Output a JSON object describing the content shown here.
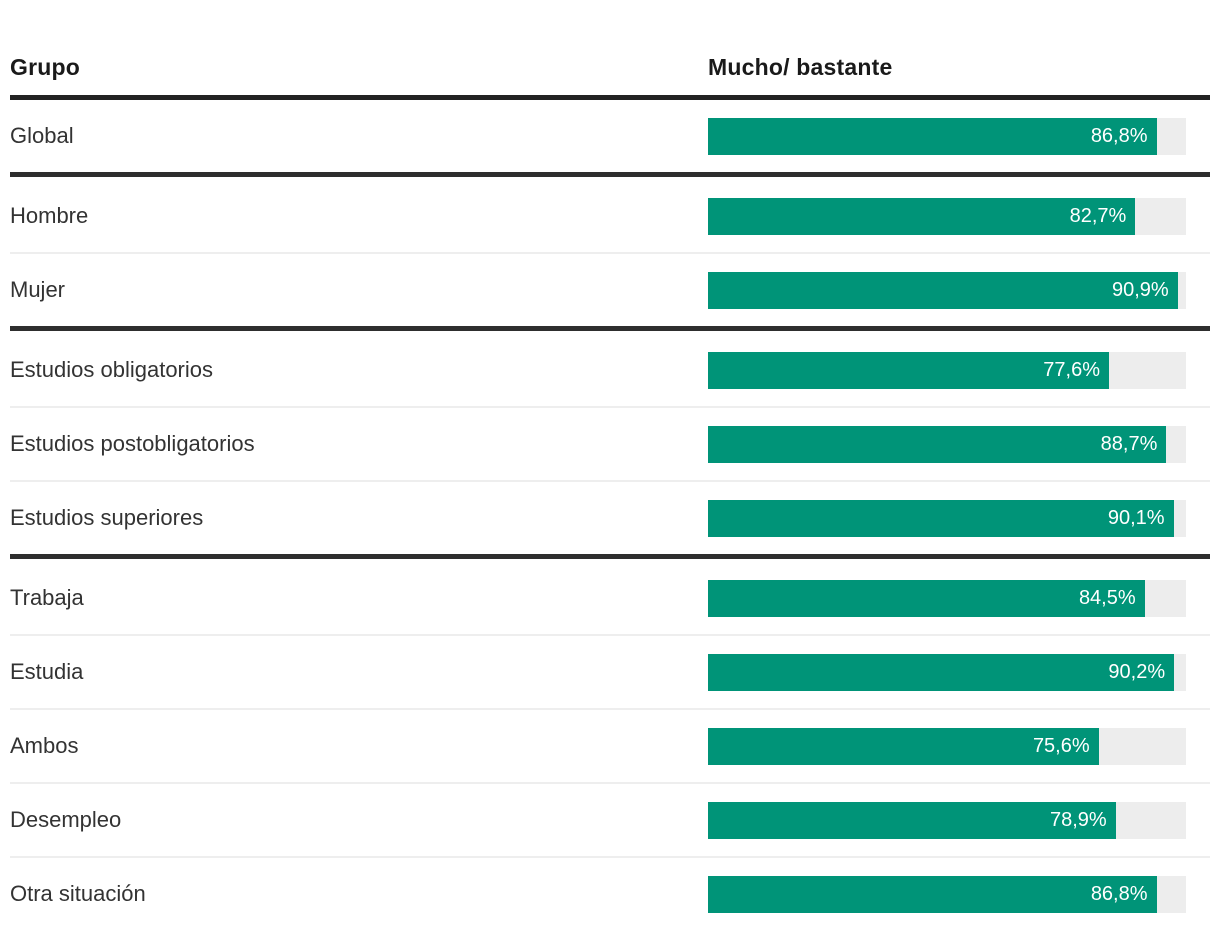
{
  "header": {
    "group_col": "Grupo",
    "value_col": "Mucho/ bastante"
  },
  "chart_data": {
    "type": "bar",
    "orientation": "horizontal",
    "title": "",
    "xlabel": "Mucho/ bastante",
    "ylabel": "Grupo",
    "value_suffix": "%",
    "decimal_separator": ",",
    "bar_color": "#009478",
    "track_color": "#ededed",
    "bar_scale_max": 92.5,
    "grid": false,
    "legend": false,
    "groups": [
      {
        "rows": [
          {
            "label": "Global",
            "value": 86.8,
            "display": "86,8%"
          }
        ]
      },
      {
        "rows": [
          {
            "label": "Hombre",
            "value": 82.7,
            "display": "82,7%"
          },
          {
            "label": "Mujer",
            "value": 90.9,
            "display": "90,9%"
          }
        ]
      },
      {
        "rows": [
          {
            "label": "Estudios obligatorios",
            "value": 77.6,
            "display": "77,6%"
          },
          {
            "label": "Estudios postobligatorios",
            "value": 88.7,
            "display": "88,7%"
          },
          {
            "label": "Estudios superiores",
            "value": 90.1,
            "display": "90,1%"
          }
        ]
      },
      {
        "rows": [
          {
            "label": "Trabaja",
            "value": 84.5,
            "display": "84,5%"
          },
          {
            "label": "Estudia",
            "value": 90.2,
            "display": "90,2%"
          },
          {
            "label": "Ambos",
            "value": 75.6,
            "display": "75,6%"
          },
          {
            "label": "Desempleo",
            "value": 78.9,
            "display": "78,9%"
          },
          {
            "label": "Otra situación",
            "value": 86.8,
            "display": "86,8%"
          }
        ]
      }
    ]
  }
}
